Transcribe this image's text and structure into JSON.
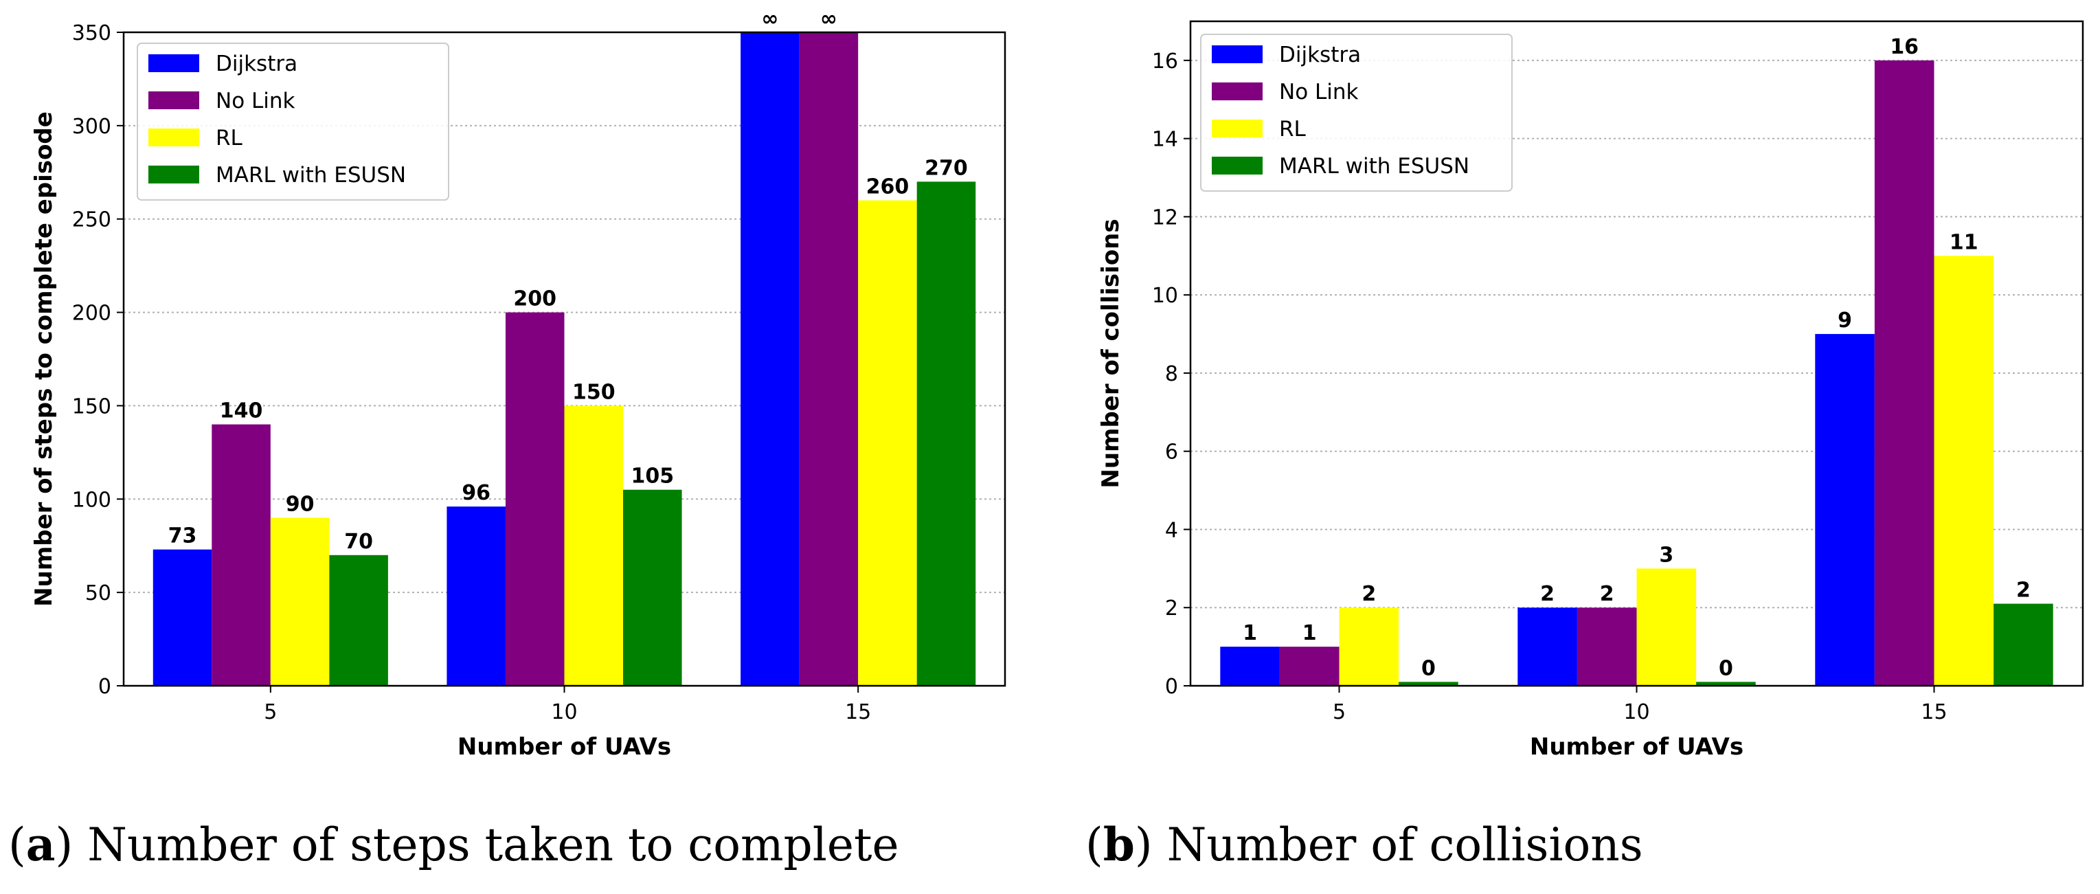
{
  "chart_data": [
    {
      "type": "bar",
      "id": "a",
      "xlabel": "Number of UAVs",
      "ylabel": "Number of steps to complete episode",
      "categories": [
        "5",
        "10",
        "15"
      ],
      "ylim": [
        0,
        350
      ],
      "yticks": [
        0,
        50,
        100,
        150,
        200,
        250,
        300,
        350
      ],
      "grid": true,
      "legend_position": "top-left",
      "series": [
        {
          "name": "Dijkstra",
          "color": "#0000ff",
          "values": [
            73,
            96,
            350
          ],
          "labels": [
            "73",
            "96",
            "∞"
          ]
        },
        {
          "name": "No Link",
          "color": "#800080",
          "values": [
            140,
            200,
            350
          ],
          "labels": [
            "140",
            "200",
            "∞"
          ]
        },
        {
          "name": "RL",
          "color": "#ffff00",
          "values": [
            90,
            150,
            260
          ],
          "labels": [
            "90",
            "150",
            "260"
          ]
        },
        {
          "name": "MARL with ESUSN",
          "color": "#008000",
          "values": [
            70,
            105,
            270
          ],
          "labels": [
            "70",
            "105",
            "270"
          ]
        }
      ],
      "caption_letter": "(a)",
      "caption_text": " Number of steps taken to complete"
    },
    {
      "type": "bar",
      "id": "b",
      "xlabel": "Number of UAVs",
      "ylabel": "Number of collisions",
      "categories": [
        "5",
        "10",
        "15"
      ],
      "ylim": [
        0,
        17
      ],
      "yticks": [
        0,
        2,
        4,
        6,
        8,
        10,
        12,
        14,
        16
      ],
      "grid": true,
      "legend_position": "top-left",
      "series": [
        {
          "name": "Dijkstra",
          "color": "#0000ff",
          "values": [
            1,
            2,
            9
          ],
          "labels": [
            "1",
            "2",
            "9"
          ]
        },
        {
          "name": "No Link",
          "color": "#800080",
          "values": [
            1,
            2,
            16
          ],
          "labels": [
            "1",
            "2",
            "16"
          ]
        },
        {
          "name": "RL",
          "color": "#ffff00",
          "values": [
            2,
            3,
            11
          ],
          "labels": [
            "2",
            "3",
            "11"
          ]
        },
        {
          "name": "MARL with ESUSN",
          "color": "#008000",
          "values": [
            0.1,
            0.1,
            2.1
          ],
          "labels": [
            "0",
            "0",
            "2"
          ]
        }
      ],
      "caption_letter": "(b)",
      "caption_text": " Number of collisions"
    }
  ]
}
